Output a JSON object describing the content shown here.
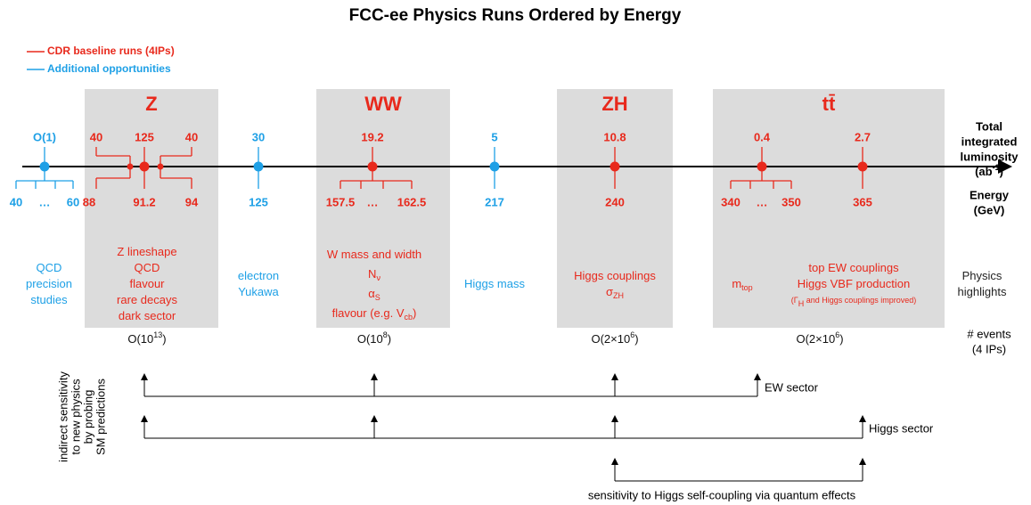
{
  "title": "FCC-ee Physics Runs Ordered by Energy",
  "legend": [
    {
      "label": "CDR baseline runs (4IPs)",
      "color": "#e8291c"
    },
    {
      "label": "Additional opportunities",
      "color": "#1ea0e6"
    }
  ],
  "runs": [
    {
      "label": "Z"
    },
    {
      "label": "WW"
    },
    {
      "label": "ZH"
    },
    {
      "label": "tt̄"
    }
  ],
  "axis_labels": {
    "luminosity": {
      "lines": [
        "Total",
        "integrated",
        "luminosity"
      ],
      "unit": "(ab",
      "exp": "-1",
      "close": ")"
    },
    "energy": [
      "Energy",
      "(GeV)"
    ]
  },
  "points": [
    {
      "color": "#1ea0e6",
      "luminosity": [
        "O(1)"
      ],
      "energies": [
        "40",
        "…",
        "60"
      ]
    },
    {
      "color": "#e8291c",
      "luminosity": [
        "40",
        "125",
        "40"
      ],
      "energies": [
        "88",
        "91.2",
        "94"
      ]
    },
    {
      "color": "#1ea0e6",
      "luminosity": [
        "30"
      ],
      "energies": [
        "125"
      ]
    },
    {
      "color": "#e8291c",
      "luminosity": [
        "19.2"
      ],
      "energies": [
        "157.5",
        "…",
        "162.5"
      ]
    },
    {
      "color": "#1ea0e6",
      "luminosity": [
        "5"
      ],
      "energies": [
        "217"
      ]
    },
    {
      "color": "#e8291c",
      "luminosity": [
        "10.8"
      ],
      "energies": [
        "240"
      ]
    },
    {
      "color": "#e8291c",
      "luminosity": [
        "0.4"
      ],
      "energies": [
        "340",
        "…",
        "350"
      ]
    },
    {
      "color": "#e8291c",
      "luminosity": [
        "2.7"
      ],
      "energies": [
        "365"
      ]
    }
  ],
  "highlights": [
    {
      "color": "#1ea0e6",
      "lines": [
        {
          "text": "QCD"
        },
        {
          "text": "precision"
        },
        {
          "text": "studies"
        }
      ]
    },
    {
      "color": "#e8291c",
      "lines": [
        {
          "text": "Z lineshape"
        },
        {
          "text": "QCD"
        },
        {
          "text": "flavour"
        },
        {
          "text": "rare decays"
        },
        {
          "text": "dark sector"
        }
      ]
    },
    {
      "color": "#1ea0e6",
      "lines": [
        {
          "text": "electron"
        },
        {
          "text": "Yukawa"
        }
      ]
    },
    {
      "color": "#e8291c",
      "lines": [
        {
          "text": "W mass and width"
        },
        {
          "text": "N",
          "sub": "ν"
        },
        {
          "text": "α",
          "sub": "S"
        },
        {
          "text": "flavour (e.g. V",
          "sub": "cb",
          "after": ")"
        }
      ]
    },
    {
      "color": "#1ea0e6",
      "lines": [
        {
          "text": "Higgs mass"
        }
      ]
    },
    {
      "color": "#e8291c",
      "lines": [
        {
          "text": "Higgs couplings"
        },
        {
          "text": "σ",
          "sub": "ZH"
        }
      ]
    },
    {
      "color": "#e8291c",
      "lines": [
        {
          "text": "m",
          "sub": "top"
        }
      ]
    },
    {
      "color": "#e8291c",
      "lines": [
        {
          "text": "top EW couplings"
        },
        {
          "text": "Higgs VBF production"
        },
        {
          "text": "(Γ",
          "sub": "H",
          "after": " and Higgs couplings improved)"
        }
      ]
    },
    {
      "color": "#222222",
      "lines": [
        {
          "text": "Physics"
        },
        {
          "text": "highlights"
        }
      ]
    }
  ],
  "events": [
    {
      "text": "O(10",
      "sup": "13",
      "after": ")"
    },
    {
      "text": "O(10",
      "sup": "8",
      "after": ")"
    },
    {
      "text": "O(2×10",
      "sup": "6",
      "after": ")"
    },
    {
      "text": "O(2×10",
      "sup": "6",
      "after": ")"
    }
  ],
  "events_label": [
    "# events",
    "(4 IPs)"
  ],
  "sensitivity": {
    "axis_label": [
      "indirect sensitivity",
      "to new physics",
      "by probing",
      "SM predictions"
    ],
    "rows": [
      "EW sector",
      "Higgs sector",
      "sensitivity to Higgs self-coupling via quantum effects"
    ]
  }
}
